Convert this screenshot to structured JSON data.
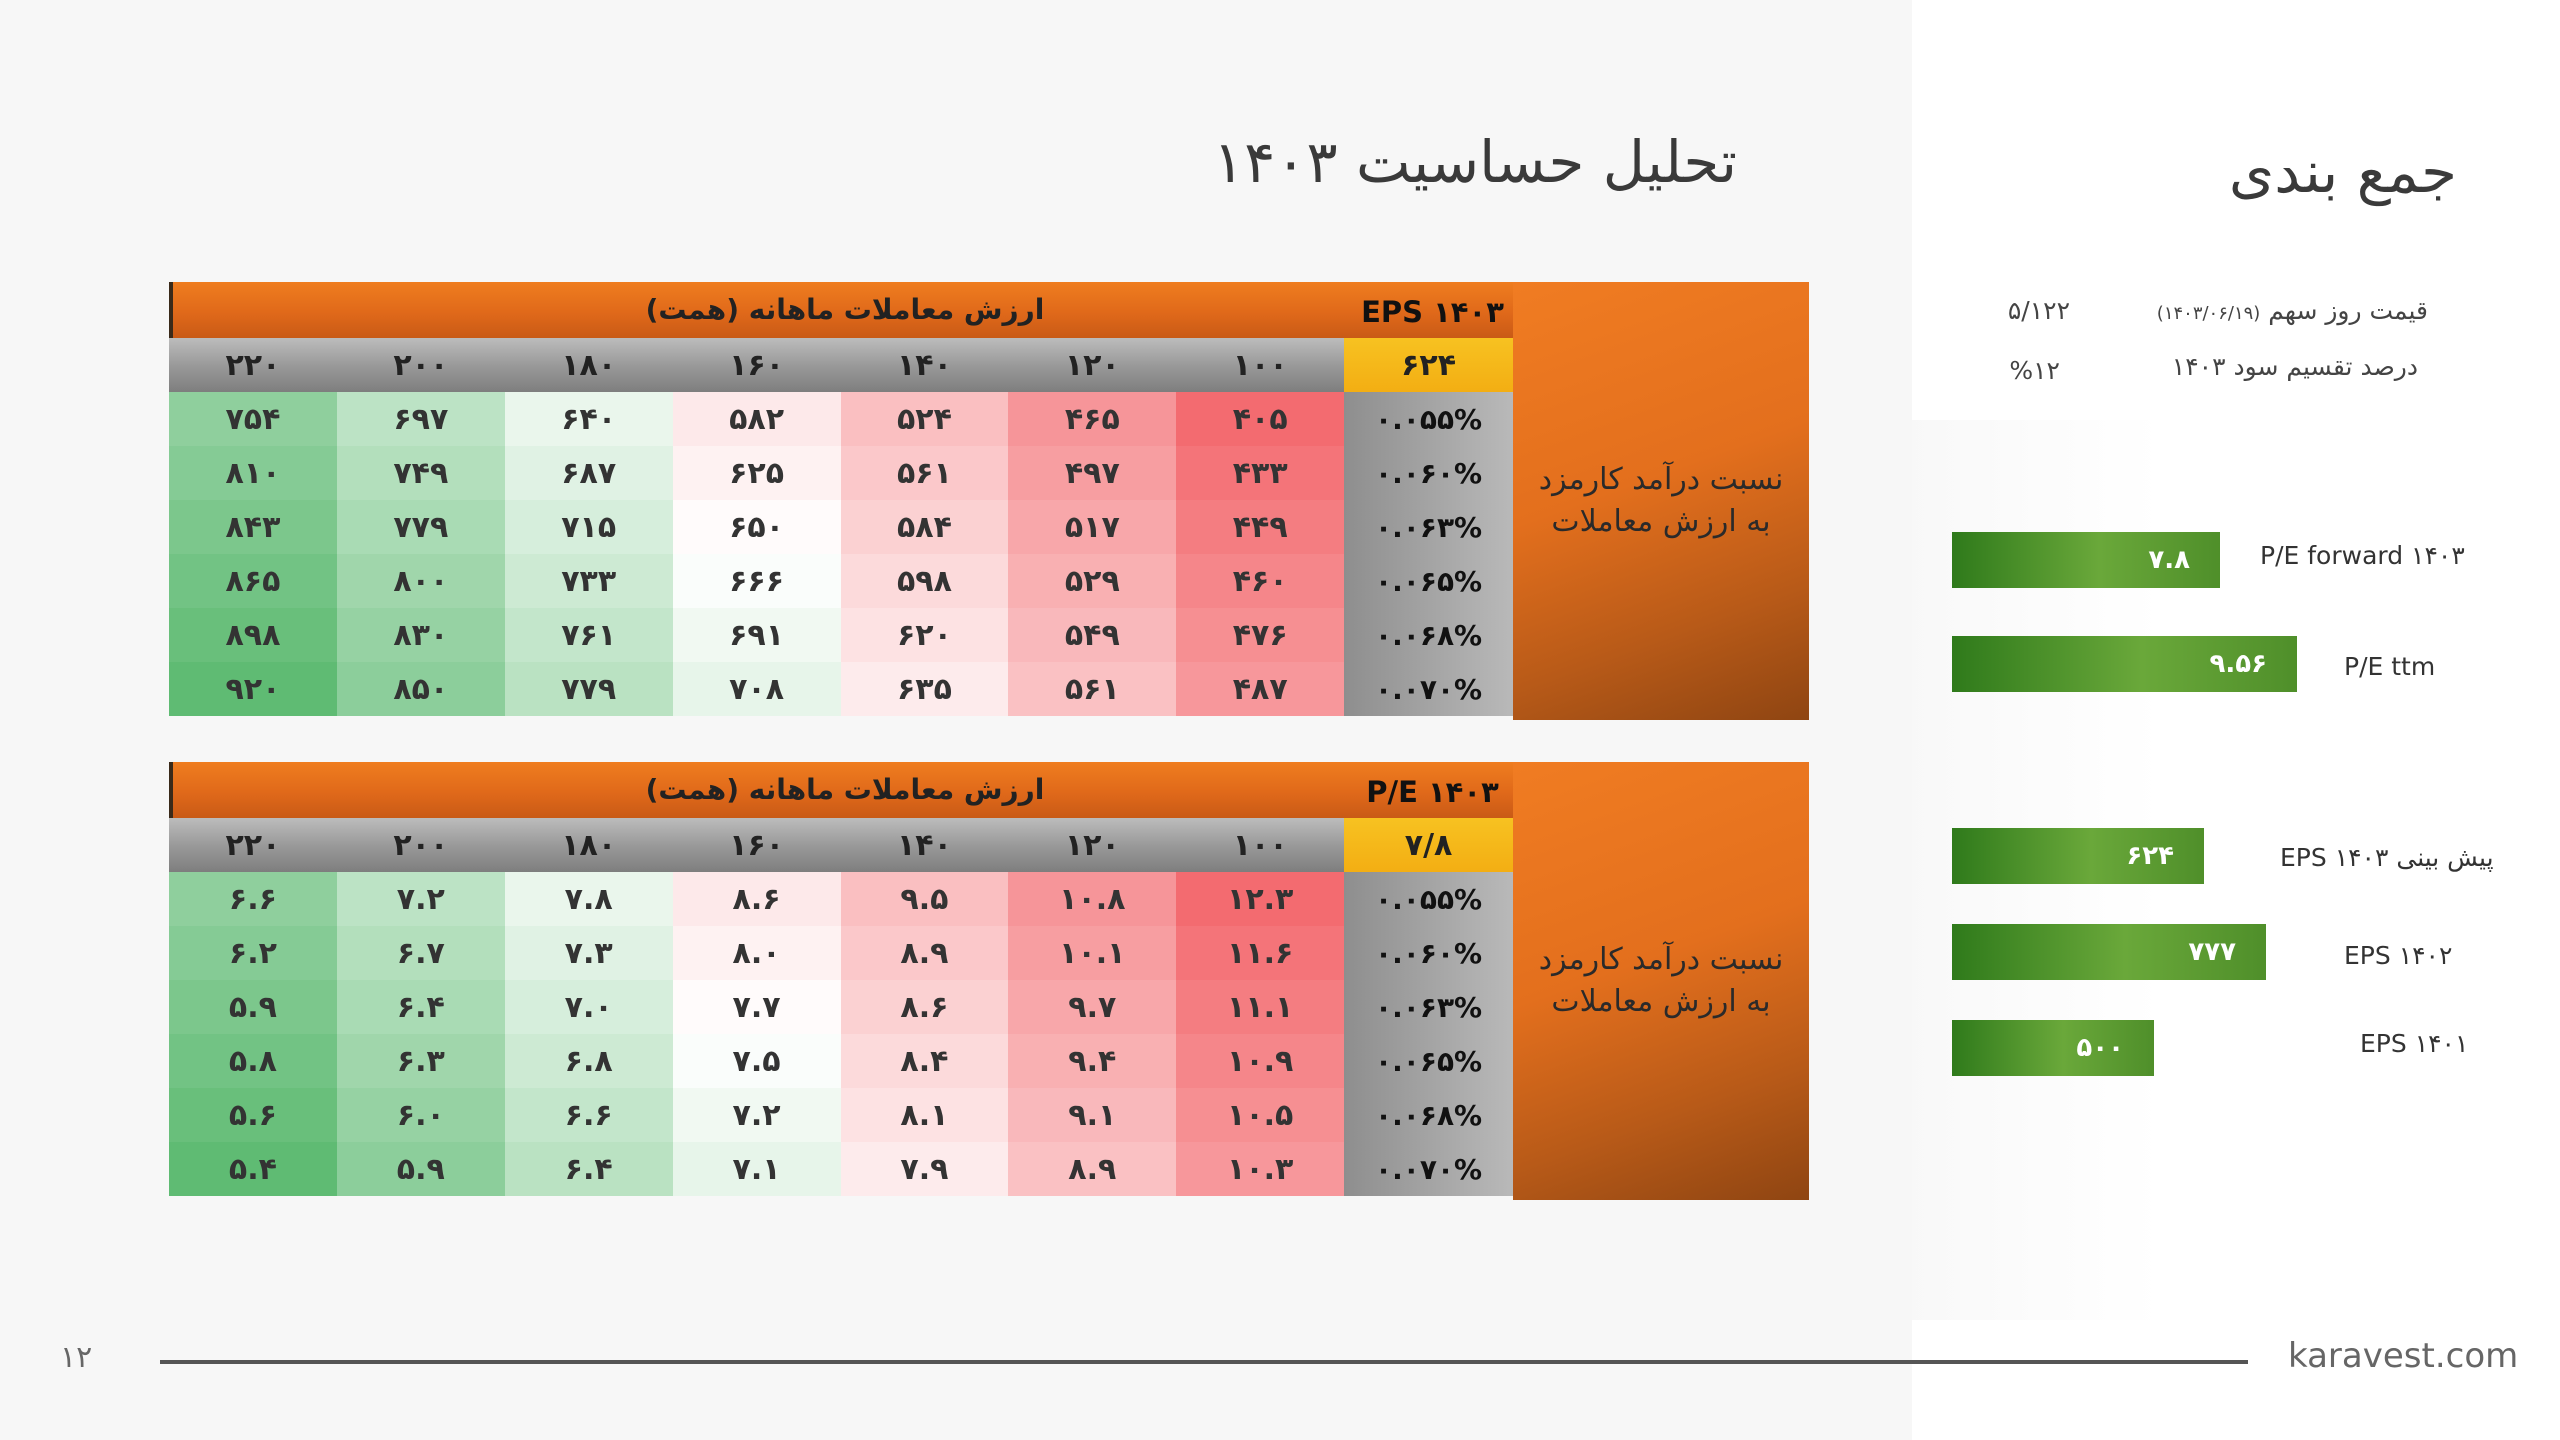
{
  "page": {
    "title": "تحلیل حساسیت ۱۴۰۳",
    "page_number": "۱۲",
    "website": "karavest.com"
  },
  "summary": {
    "heading": "جمع بندی",
    "items": [
      {
        "label": "قیمت روز سهم",
        "sub": "(۱۴۰۳/۰۶/۱۹)",
        "value": "۵/۱۲۲"
      },
      {
        "label": "درصد تقسیم سود ۱۴۰۳",
        "sub": "",
        "value": "%۱۲"
      }
    ],
    "bars": [
      {
        "label": "P/E forward ۱۴۰۳",
        "value": "۷.۸",
        "scale": 0.73
      },
      {
        "label": "P/E ttm",
        "value": "۹.۵۶",
        "scale": 1.0
      },
      {
        "label": "پیش بینی EPS ۱۴۰۳",
        "value": "۶۲۴",
        "scale": 0.73
      },
      {
        "label": "EPS ۱۴۰۲",
        "value": "۷۷۷",
        "scale": 0.91
      },
      {
        "label": "EPS ۱۴۰۱",
        "value": "۵۰۰",
        "scale": 0.58
      }
    ]
  },
  "table_eps": {
    "title": "ارزش معاملات ماهانه (همت)",
    "corner_label": "EPS ۱۴۰۳",
    "corner_value": "۶۲۴",
    "side_label": "نسبت درآمد کارمزد به ارزش معاملات",
    "columns": [
      "۱۰۰",
      "۱۲۰",
      "۱۴۰",
      "۱۶۰",
      "۱۸۰",
      "۲۰۰",
      "۲۲۰"
    ],
    "rows": [
      {
        "h": "۰.۰۵۵%",
        "v": [
          "۴۰۵",
          "۴۶۵",
          "۵۲۴",
          "۵۸۲",
          "۶۴۰",
          "۶۹۷",
          "۷۵۴"
        ]
      },
      {
        "h": "۰.۰۶۰%",
        "v": [
          "۴۳۳",
          "۴۹۷",
          "۵۶۱",
          "۶۲۵",
          "۶۸۷",
          "۷۴۹",
          "۸۱۰"
        ]
      },
      {
        "h": "۰.۰۶۳%",
        "v": [
          "۴۴۹",
          "۵۱۷",
          "۵۸۴",
          "۶۵۰",
          "۷۱۵",
          "۷۷۹",
          "۸۴۳"
        ]
      },
      {
        "h": "۰.۰۶۵%",
        "v": [
          "۴۶۰",
          "۵۲۹",
          "۵۹۸",
          "۶۶۶",
          "۷۳۳",
          "۸۰۰",
          "۸۶۵"
        ]
      },
      {
        "h": "۰.۰۶۸%",
        "v": [
          "۴۷۶",
          "۵۴۹",
          "۶۲۰",
          "۶۹۱",
          "۷۶۱",
          "۸۳۰",
          "۸۹۸"
        ]
      },
      {
        "h": "۰.۰۷۰%",
        "v": [
          "۴۸۷",
          "۵۶۱",
          "۶۳۵",
          "۷۰۸",
          "۷۷۹",
          "۸۵۰",
          "۹۲۰"
        ]
      }
    ]
  },
  "table_pe": {
    "title": "ارزش معاملات ماهانه (همت)",
    "corner_label": "P/E ۱۴۰۳",
    "corner_value": "۷/۸",
    "side_label": "نسبت درآمد کارمزد به ارزش معاملات",
    "columns": [
      "۱۰۰",
      "۱۲۰",
      "۱۴۰",
      "۱۶۰",
      "۱۸۰",
      "۲۰۰",
      "۲۲۰"
    ],
    "rows": [
      {
        "h": "۰.۰۵۵%",
        "v": [
          "۱۲.۳",
          "۱۰.۸",
          "۹.۵",
          "۸.۶",
          "۷.۸",
          "۷.۲",
          "۶.۶"
        ]
      },
      {
        "h": "۰.۰۶۰%",
        "v": [
          "۱۱.۶",
          "۱۰.۱",
          "۸.۹",
          "۸.۰",
          "۷.۳",
          "۶.۷",
          "۶.۲"
        ]
      },
      {
        "h": "۰.۰۶۳%",
        "v": [
          "۱۱.۱",
          "۹.۷",
          "۸.۶",
          "۷.۷",
          "۷.۰",
          "۶.۴",
          "۵.۹"
        ]
      },
      {
        "h": "۰.۰۶۵%",
        "v": [
          "۱۰.۹",
          "۹.۴",
          "۸.۴",
          "۷.۵",
          "۶.۸",
          "۶.۳",
          "۵.۸"
        ]
      },
      {
        "h": "۰.۰۶۸%",
        "v": [
          "۱۰.۵",
          "۹.۱",
          "۸.۱",
          "۷.۲",
          "۶.۶",
          "۶.۰",
          "۵.۶"
        ]
      },
      {
        "h": "۰.۰۷۰%",
        "v": [
          "۱۰.۳",
          "۸.۹",
          "۷.۹",
          "۷.۱",
          "۶.۴",
          "۵.۹",
          "۵.۴"
        ]
      }
    ]
  },
  "colors": {
    "red_strong": "#f36b70",
    "white": "#ffffff",
    "green_strong": "#5fbb73"
  }
}
